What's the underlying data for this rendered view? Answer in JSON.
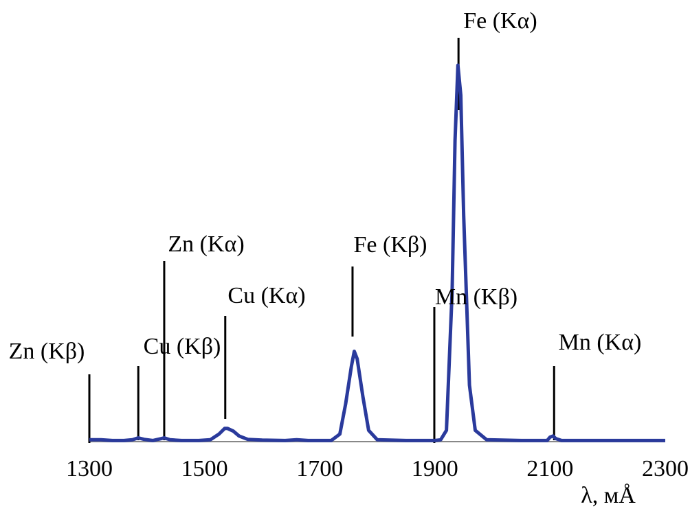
{
  "chart_data": {
    "type": "line",
    "xlabel": "λ, мÅ",
    "xlim": [
      1300,
      2300
    ],
    "xticks": [
      1300,
      1500,
      1700,
      1900,
      2100,
      2300
    ],
    "ylim": [
      0,
      100
    ],
    "series": [
      {
        "color": "#2a3a9c",
        "x": [
          1300,
          1320,
          1340,
          1360,
          1375,
          1385,
          1395,
          1410,
          1425,
          1430,
          1440,
          1460,
          1490,
          1510,
          1525,
          1535,
          1540,
          1550,
          1560,
          1575,
          1600,
          1640,
          1660,
          1680,
          1720,
          1735,
          1745,
          1755,
          1760,
          1765,
          1775,
          1785,
          1800,
          1850,
          1900,
          1910,
          1920,
          1930,
          1935,
          1940,
          1945,
          1950,
          1960,
          1970,
          1990,
          2050,
          2095,
          2100,
          2105,
          2110,
          2120,
          2200,
          2300
        ],
        "values": [
          0.5,
          0.5,
          0.3,
          0.3,
          0.5,
          1,
          0.6,
          0.3,
          0.8,
          1,
          0.5,
          0.3,
          0.3,
          0.5,
          2,
          3.5,
          3.5,
          2.8,
          1.5,
          0.6,
          0.4,
          0.3,
          0.5,
          0.3,
          0.3,
          2,
          10,
          20,
          24,
          22,
          12,
          3,
          0.5,
          0.3,
          0.3,
          0.5,
          3,
          40,
          80,
          100,
          92,
          60,
          15,
          3,
          0.5,
          0.3,
          0.3,
          1.2,
          1.5,
          0.8,
          0.3,
          0.3,
          0.3
        ]
      }
    ],
    "annotations": [
      {
        "text": "Zn (Kβ)",
        "x": 1300
      },
      {
        "text": "Cu (Kβ)",
        "x": 1385
      },
      {
        "text": "Zn (Kα)",
        "x": 1430
      },
      {
        "text": "Cu (Kα)",
        "x": 1536
      },
      {
        "text": "Fe (Kβ)",
        "x": 1757
      },
      {
        "text": "Mn (Kβ)",
        "x": 1899
      },
      {
        "text": "Fe (Kα)",
        "x": 1941
      },
      {
        "text": "Mn (Kα)",
        "x": 2107
      }
    ]
  }
}
